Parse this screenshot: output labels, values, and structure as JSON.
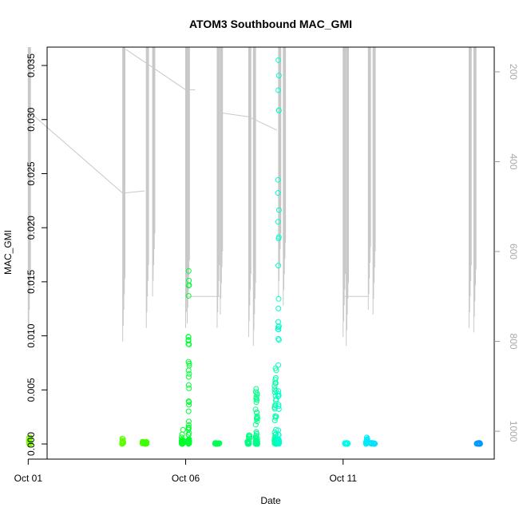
{
  "chart_data": {
    "type": "scatter",
    "title": "ATOM3 Southbound MAC_GMI",
    "xlabel": "Date",
    "ylabel": "MAC_GMI",
    "x_ticks": [
      "Oct 01",
      "Oct 06",
      "Oct 11"
    ],
    "xlim_days": [
      0.6,
      14.8
    ],
    "ylim": [
      -0.0014,
      0.0367
    ],
    "y_ticks": [
      "0.000",
      "0.005",
      "0.010",
      "0.015",
      "0.020",
      "0.025",
      "0.030",
      "0.035"
    ],
    "y_tick_values": [
      0,
      0.005,
      0.01,
      0.015,
      0.02,
      0.025,
      0.03,
      0.035
    ],
    "y2_label": "",
    "y2_ticks": [
      "200",
      "400",
      "600",
      "800",
      "1000"
    ],
    "y2_tick_values": [
      200,
      400,
      600,
      800,
      1000
    ],
    "y2_lim": [
      1062,
      145
    ],
    "grid": false,
    "legend": "none",
    "depth_trace_color": "#c8c8c8",
    "point_clusters": [
      {
        "day": 0.05,
        "spread": 0.06,
        "max": 0.0006,
        "color": "#7fff00"
      },
      {
        "day": 3.0,
        "spread": 0.05,
        "max": 0.0005,
        "color": "#5cff00"
      },
      {
        "day": 3.7,
        "spread": 0.15,
        "max": 0.0002,
        "color": "#3cff00"
      },
      {
        "day": 4.9,
        "spread": 0.06,
        "max": 0.0013,
        "color": "#00ff26"
      },
      {
        "day": 5.1,
        "spread": 0.03,
        "max": 0.016,
        "color": "#00ff33"
      },
      {
        "day": 6.0,
        "spread": 0.15,
        "max": 0.0001,
        "color": "#00ff55"
      },
      {
        "day": 7.0,
        "spread": 0.08,
        "max": 0.0008,
        "color": "#00ff7f"
      },
      {
        "day": 7.25,
        "spread": 0.06,
        "max": 0.0051,
        "color": "#00ff88"
      },
      {
        "day": 7.85,
        "spread": 0.06,
        "max": 0.007,
        "color": "#00ffa6"
      },
      {
        "day": 7.95,
        "spread": 0.03,
        "max": 0.0355,
        "color": "#00ffcc"
      },
      {
        "day": 10.1,
        "spread": 0.1,
        "max": 0.0001,
        "color": "#00ffea"
      },
      {
        "day": 10.75,
        "spread": 0.05,
        "max": 0.0006,
        "color": "#00eaff"
      },
      {
        "day": 10.95,
        "spread": 0.12,
        "max": 0.0001,
        "color": "#00e0ff"
      },
      {
        "day": 14.3,
        "spread": 0.12,
        "max": 0.0001,
        "color": "#0099ff"
      }
    ],
    "depth_dives": [
      {
        "day": 0.0,
        "bottom": 800
      },
      {
        "day": 3.0,
        "bottom": 800
      },
      {
        "day": 3.75,
        "bottom": 770
      },
      {
        "day": 3.95,
        "bottom": 700
      },
      {
        "day": 5.0,
        "bottom": 770
      },
      {
        "day": 5.05,
        "bottom": 760
      },
      {
        "day": 6.0,
        "bottom": 770
      },
      {
        "day": 6.1,
        "bottom": 740
      },
      {
        "day": 7.0,
        "bottom": 790
      },
      {
        "day": 7.15,
        "bottom": 810
      },
      {
        "day": 7.95,
        "bottom": 700
      },
      {
        "day": 8.1,
        "bottom": 720
      },
      {
        "day": 10.0,
        "bottom": 790
      },
      {
        "day": 10.1,
        "bottom": 810
      },
      {
        "day": 10.8,
        "bottom": 730
      },
      {
        "day": 10.95,
        "bottom": 740
      },
      {
        "day": 14.0,
        "bottom": 770
      },
      {
        "day": 14.15,
        "bottom": 780
      }
    ]
  }
}
